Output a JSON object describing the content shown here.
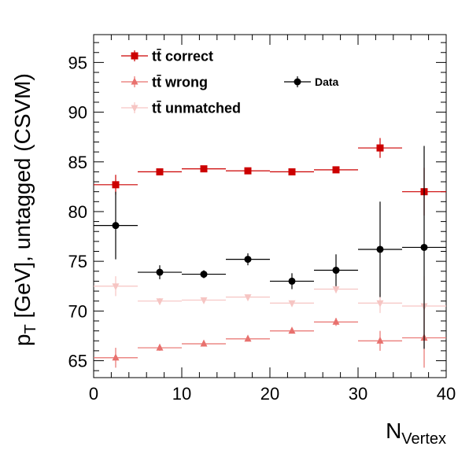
{
  "chart_data": {
    "type": "scatter",
    "xlabel": "N",
    "xlabel_sub": "Vertex",
    "ylabel": "p",
    "ylabel_sub": "T",
    "ylabel_rest": " [GeV], untagged (CSVM)",
    "xlim": [
      0,
      40
    ],
    "ylim": [
      63.3,
      97.8
    ],
    "x_ticks": [
      0,
      10,
      20,
      30,
      40
    ],
    "y_ticks": [
      65,
      70,
      75,
      80,
      85,
      90,
      95
    ],
    "bin_half_width": 2.5,
    "legend_position": "top-left",
    "series": [
      {
        "name": "tt̄ correct",
        "color": "#cc0000",
        "marker": "square",
        "x": [
          2.5,
          7.5,
          12.5,
          17.5,
          22.5,
          27.5,
          32.5,
          37.5
        ],
        "y": [
          82.7,
          84.0,
          84.3,
          84.1,
          84.0,
          84.2,
          86.4,
          82.0
        ],
        "yerr": [
          1.0,
          0.3,
          0.2,
          0.2,
          0.2,
          0.3,
          1.0,
          2.4
        ]
      },
      {
        "name": "tt̄ wrong",
        "color": "#e8716e",
        "marker": "triangle-up",
        "x": [
          2.5,
          7.5,
          12.5,
          17.5,
          22.5,
          27.5,
          32.5,
          37.5
        ],
        "y": [
          65.3,
          66.3,
          66.7,
          67.2,
          68.0,
          68.9,
          67.0,
          67.3
        ],
        "yerr": [
          1.0,
          0.3,
          0.2,
          0.2,
          0.2,
          0.4,
          1.0,
          3.0
        ]
      },
      {
        "name": "tt̄ unmatched",
        "color": "#f6c5c3",
        "marker": "triangle-down",
        "x": [
          2.5,
          7.5,
          12.5,
          17.5,
          22.5,
          27.5,
          32.5,
          37.5
        ],
        "y": [
          72.5,
          71.0,
          71.1,
          71.4,
          70.8,
          72.2,
          70.8,
          70.5
        ],
        "yerr": [
          1.0,
          0.3,
          0.2,
          0.2,
          0.2,
          0.4,
          1.0,
          3.0
        ]
      },
      {
        "name": "Data",
        "color": "#000000",
        "marker": "circle",
        "x": [
          2.5,
          7.5,
          12.5,
          17.5,
          22.5,
          27.5,
          32.5,
          37.5
        ],
        "y": [
          78.6,
          73.9,
          73.7,
          75.2,
          73.0,
          74.1,
          76.2,
          76.4
        ],
        "yerr": [
          3.4,
          0.7,
          0.4,
          0.6,
          0.8,
          1.6,
          4.8,
          10.2
        ]
      }
    ]
  }
}
